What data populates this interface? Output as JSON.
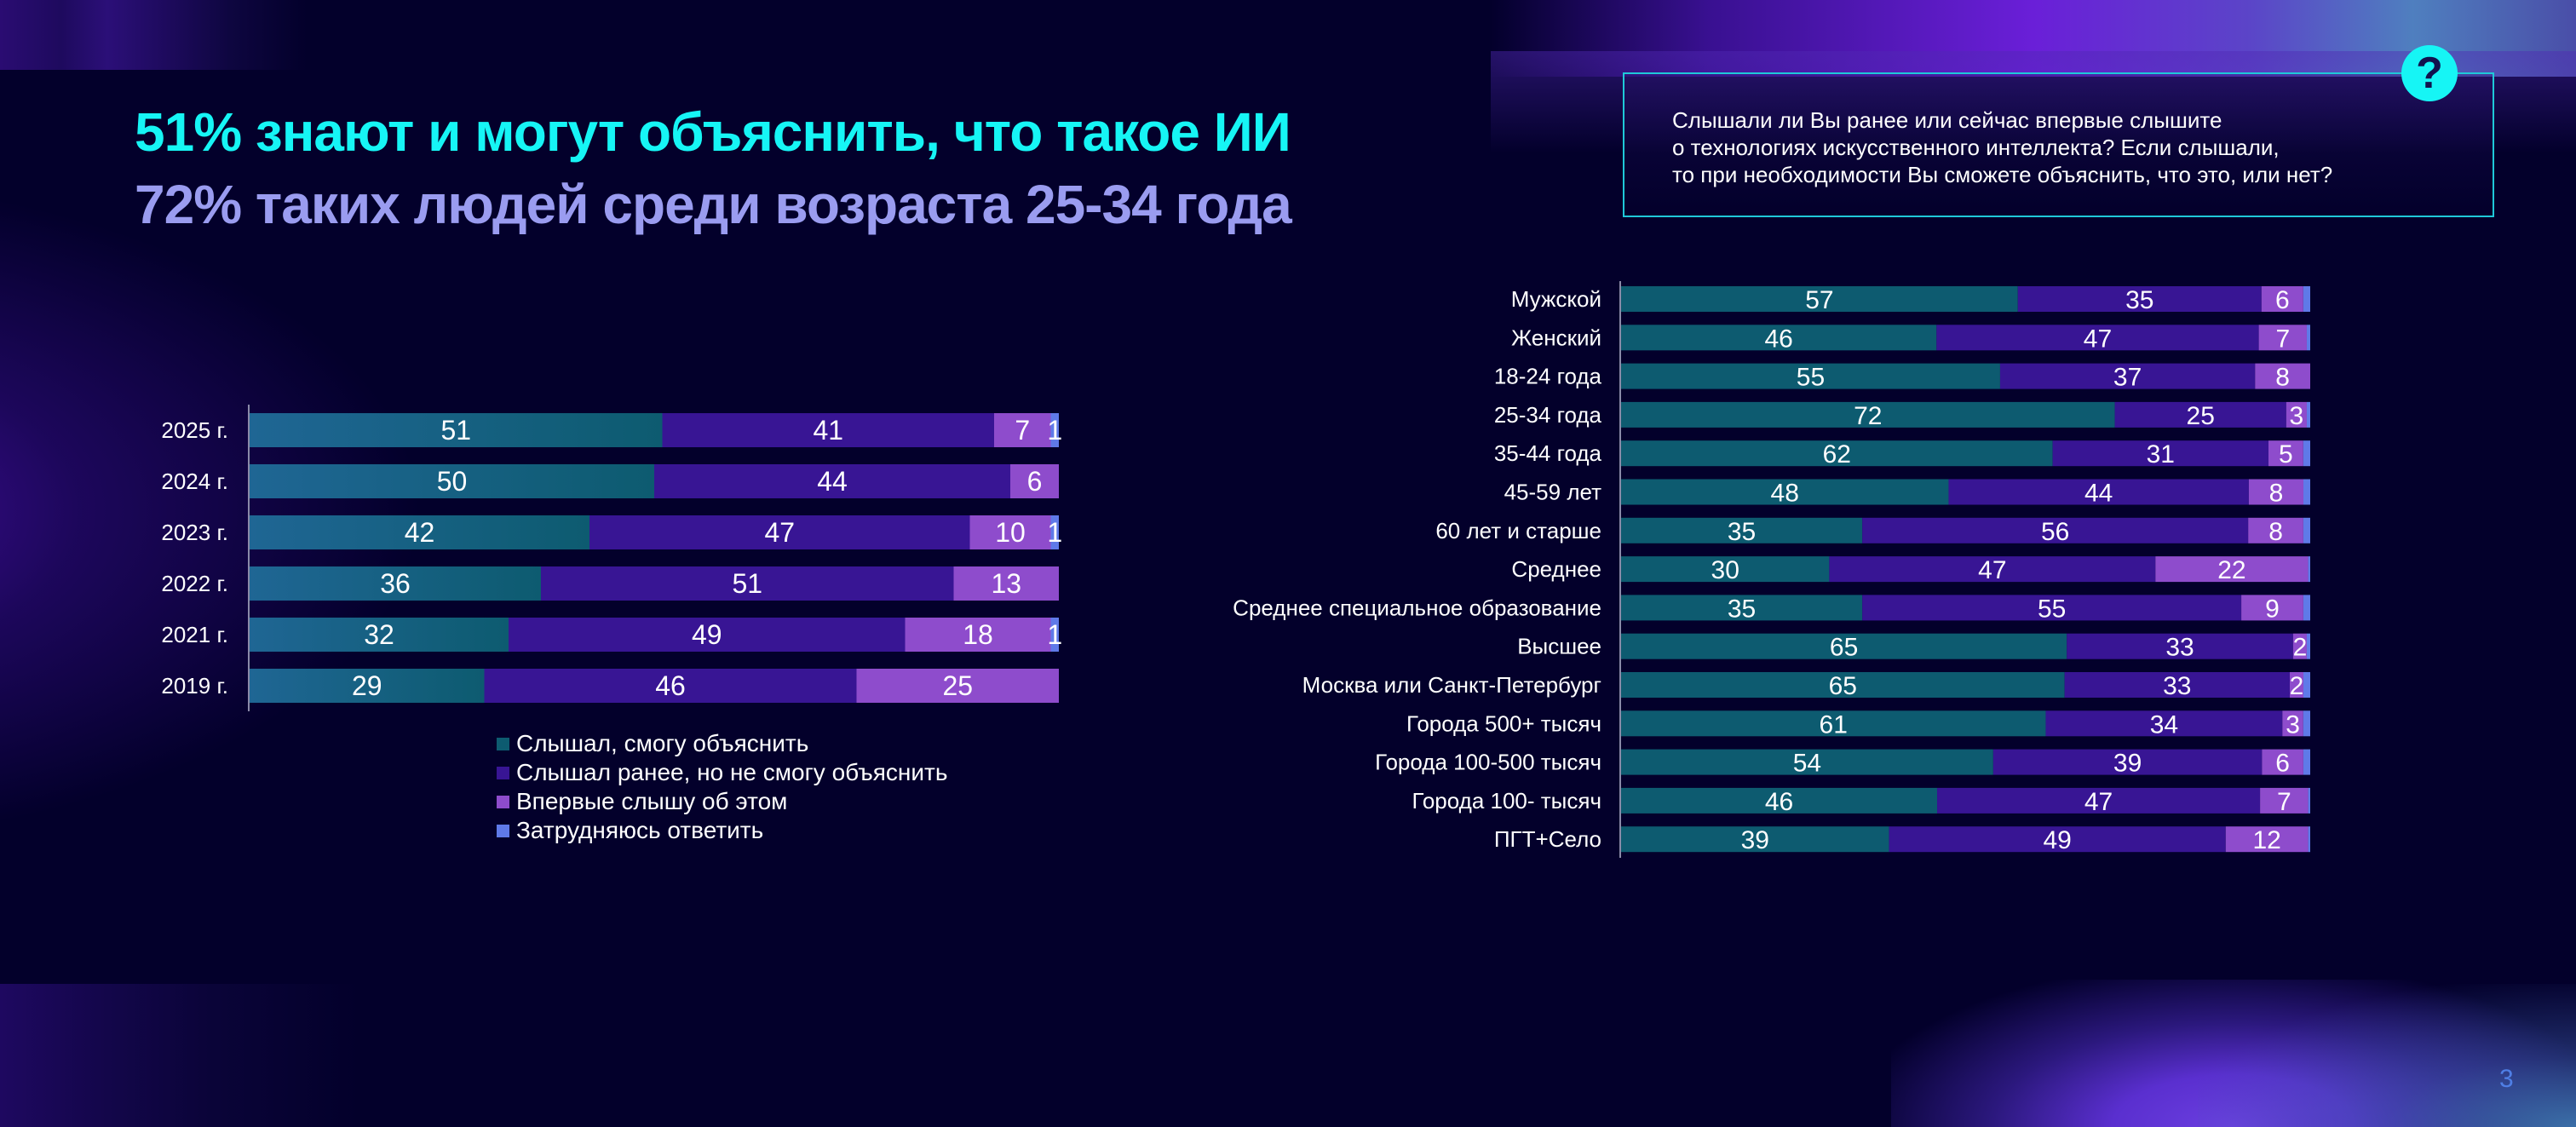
{
  "headline": {
    "line1": "51% знают и могут объяснить, что такое ИИ",
    "line2": "72% таких людей среди возраста 25-34 года"
  },
  "question": {
    "icon": "question-mark-icon",
    "lines": [
      "Слышали ли Вы ранее или сейчас впервые слышите",
      "о технологиях искусственного интеллекта? Если слышали,",
      "то при необходимости Вы сможете объяснить, что это, или нет?"
    ]
  },
  "colors": {
    "heard_can_explain": "#0d5b70",
    "heard_cannot_explain": "#381594",
    "first_time": "#8e4ccc",
    "hard_to_say": "#5f7ae8",
    "headline_accent": "#16f5f5",
    "headline_secondary": "#9a9cf0"
  },
  "legend": [
    {
      "key": "heard_can_explain",
      "label": "Слышал, смогу объяснить"
    },
    {
      "key": "heard_cannot_explain",
      "label": "Слышал ранее, но не смогу объяснить"
    },
    {
      "key": "first_time",
      "label": "Впервые слышу об этом"
    },
    {
      "key": "hard_to_say",
      "label": "Затрудняюсь ответить"
    }
  ],
  "page_number": "3",
  "chart_data": [
    {
      "type": "bar",
      "orientation": "horizontal",
      "stacked": true,
      "title": "",
      "xlabel": "",
      "ylabel": "",
      "xlim": [
        0,
        100
      ],
      "grid": false,
      "legend_position": "bottom",
      "categories": [
        "2025 г.",
        "2024 г.",
        "2023 г.",
        "2022 г.",
        "2021 г.",
        "2019 г."
      ],
      "series": [
        {
          "name": "Слышал, смогу объяснить",
          "key": "heard_can_explain",
          "values": [
            51,
            50,
            42,
            36,
            32,
            29
          ]
        },
        {
          "name": "Слышал ранее, но не смогу объяснить",
          "key": "heard_cannot_explain",
          "values": [
            41,
            44,
            47,
            51,
            49,
            46
          ]
        },
        {
          "name": "Впервые слышу об этом",
          "key": "first_time",
          "values": [
            7,
            6,
            10,
            13,
            18,
            25
          ]
        },
        {
          "name": "Затрудняюсь ответить",
          "key": "hard_to_say",
          "values": [
            1,
            0,
            1,
            0,
            1,
            0
          ]
        }
      ]
    },
    {
      "type": "bar",
      "orientation": "horizontal",
      "stacked": true,
      "title": "",
      "xlabel": "",
      "ylabel": "",
      "xlim": [
        0,
        100
      ],
      "grid": false,
      "legend_position": "none",
      "categories": [
        "Мужской",
        "Женский",
        "18-24 года",
        "25-34 года",
        "35-44 года",
        "45-59 лет",
        "60 лет и старше",
        "Среднее",
        "Среднее специальное образование",
        "Высшее",
        "Москва или Санкт-Петербург",
        "Города 500+ тысяч",
        "Города 100-500 тысяч",
        "Города 100- тысяч",
        "ПГТ+Село"
      ],
      "series": [
        {
          "name": "Слышал, смогу объяснить",
          "key": "heard_can_explain",
          "values": [
            57,
            46,
            55,
            72,
            62,
            48,
            35,
            30,
            35,
            65,
            65,
            61,
            54,
            46,
            39
          ]
        },
        {
          "name": "Слышал ранее, но не смогу объяснить",
          "key": "heard_cannot_explain",
          "values": [
            35,
            47,
            37,
            25,
            31,
            44,
            56,
            47,
            55,
            33,
            33,
            34,
            39,
            47,
            49
          ]
        },
        {
          "name": "Впервые слышу об этом",
          "key": "first_time",
          "values": [
            6,
            7,
            8,
            3,
            5,
            8,
            8,
            22,
            9,
            2,
            2,
            3,
            6,
            7,
            12
          ]
        },
        {
          "name": "Затрудняюсь ответить",
          "key": "hard_to_say",
          "values": [
            1,
            0.5,
            0,
            0.5,
            1,
            1,
            1,
            0.3,
            1,
            0.5,
            1,
            1,
            1,
            0.3,
            0.3
          ]
        }
      ],
      "value_labels_shown_for": [
        "heard_can_explain",
        "heard_cannot_explain",
        "first_time"
      ]
    }
  ]
}
